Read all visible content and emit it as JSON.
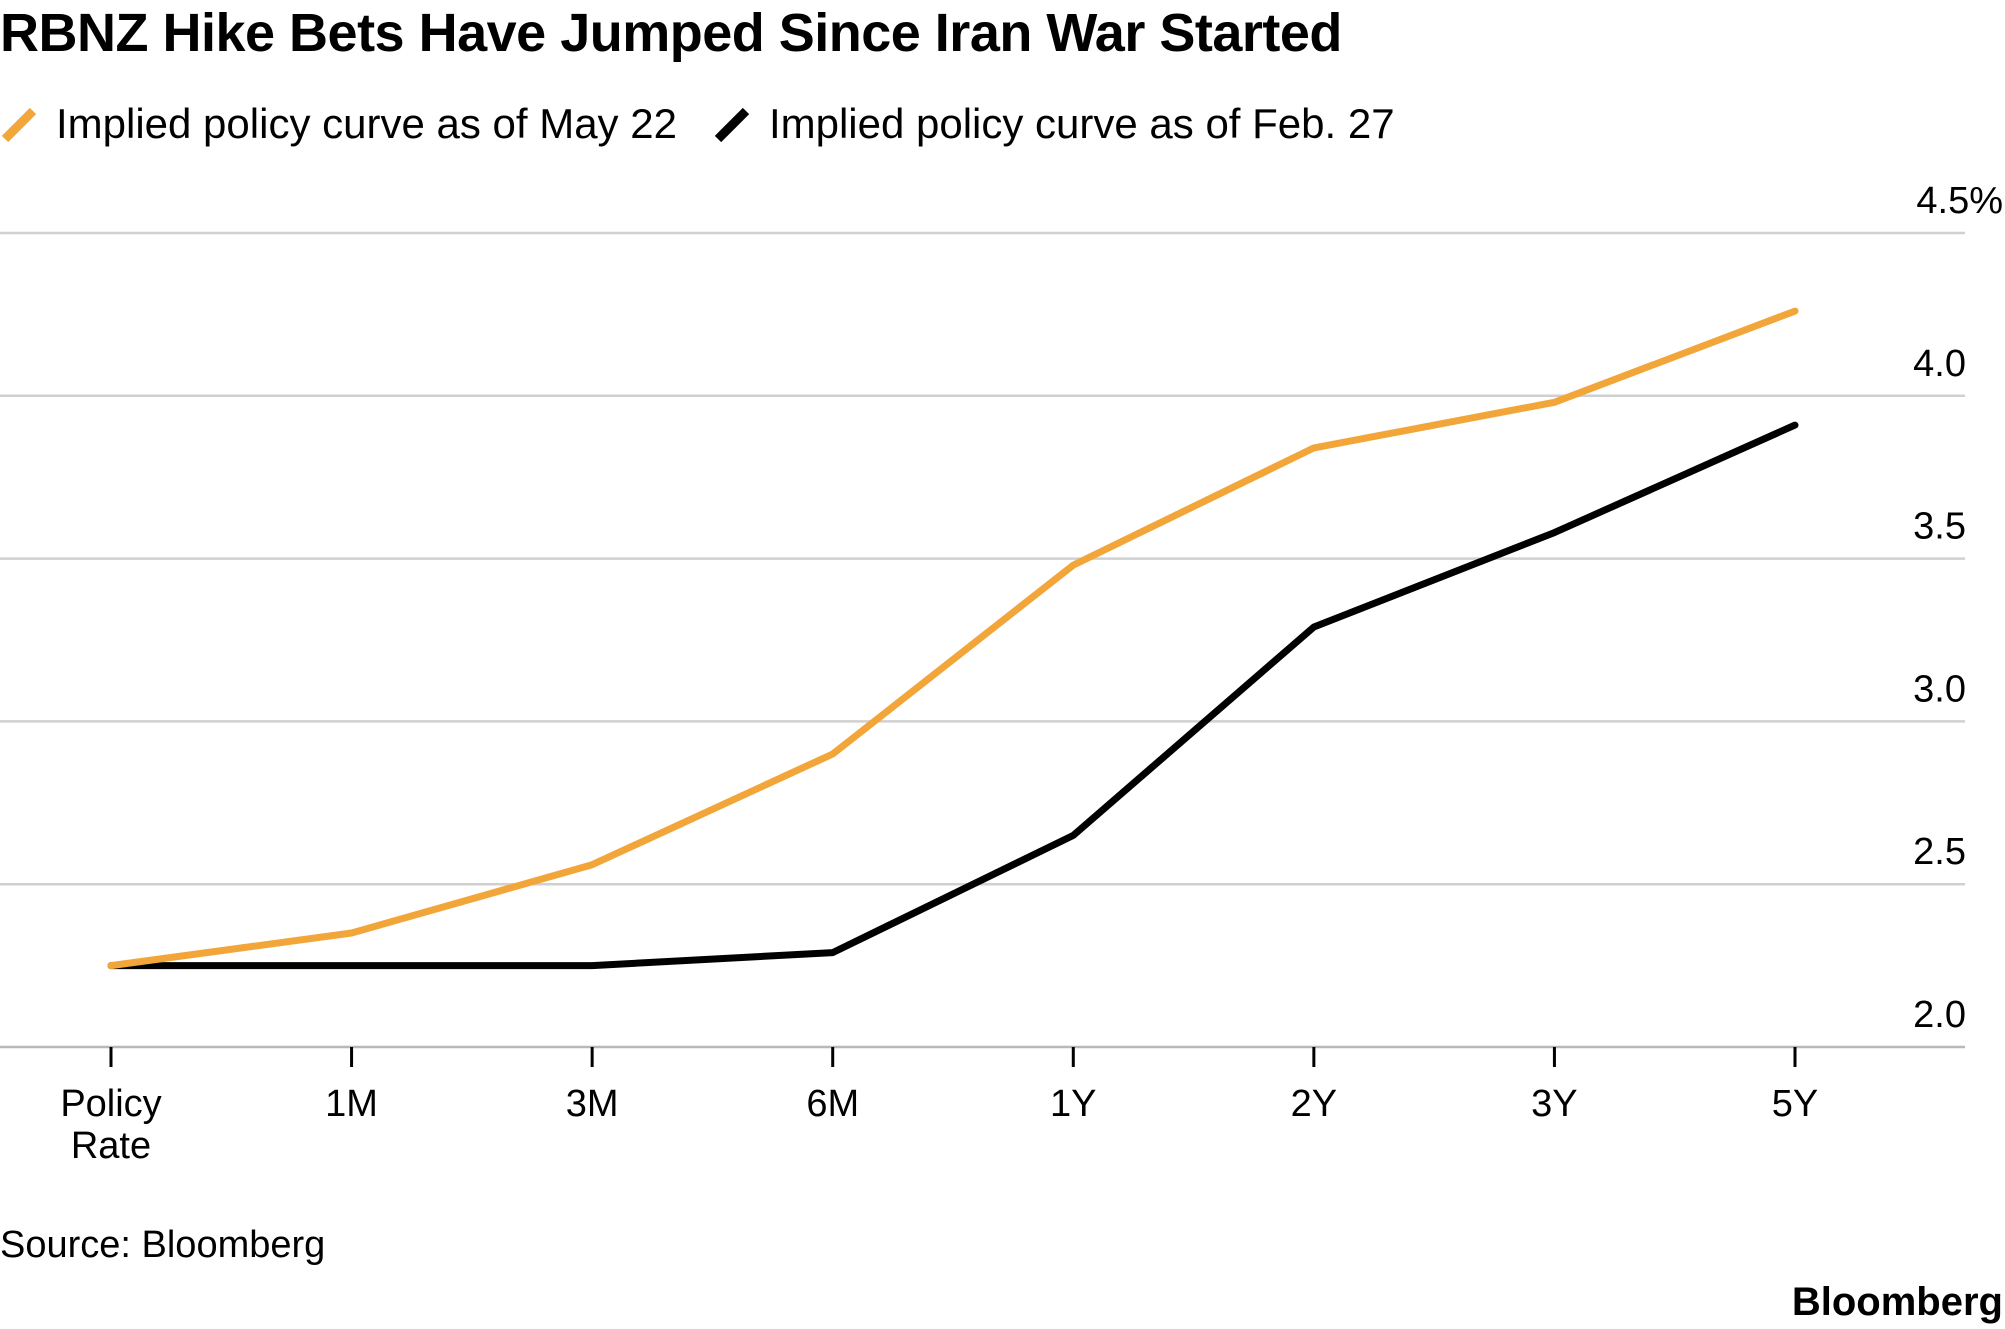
{
  "title": "RBNZ Hike Bets Have Jumped Since Iran War Started",
  "source": "Source: Bloomberg",
  "brand": "Bloomberg",
  "colors": {
    "may22": "#F2A63A",
    "feb27": "#000000",
    "grid": "#D0D0D0",
    "axis": "#B8B8B8"
  },
  "chart_data": {
    "type": "line",
    "categories": [
      "Policy Rate",
      "1M",
      "3M",
      "6M",
      "1Y",
      "2Y",
      "3Y",
      "5Y"
    ],
    "category_labels": [
      [
        "Policy",
        "Rate"
      ],
      [
        "1M"
      ],
      [
        "3M"
      ],
      [
        "6M"
      ],
      [
        "1Y"
      ],
      [
        "2Y"
      ],
      [
        "3Y"
      ],
      [
        "5Y"
      ]
    ],
    "series": [
      {
        "name": "Implied policy curve as of May 22",
        "color": "#F2A63A",
        "values": [
          2.25,
          2.35,
          2.56,
          2.9,
          3.48,
          3.84,
          3.98,
          4.26
        ]
      },
      {
        "name": "Implied policy curve as of Feb. 27",
        "color": "#000000",
        "values": [
          2.25,
          2.25,
          2.25,
          2.29,
          2.65,
          3.29,
          3.58,
          3.91
        ]
      }
    ],
    "y_ticks": [
      2.0,
      2.5,
      3.0,
      3.5,
      4.0,
      4.5
    ],
    "y_tick_labels": [
      "2.0",
      "2.5",
      "3.0",
      "3.5",
      "4.0",
      "4.5%"
    ],
    "ylim": [
      2.0,
      4.5
    ],
    "y_axis_side": "right",
    "grid": true,
    "legend_position": "top-left"
  }
}
